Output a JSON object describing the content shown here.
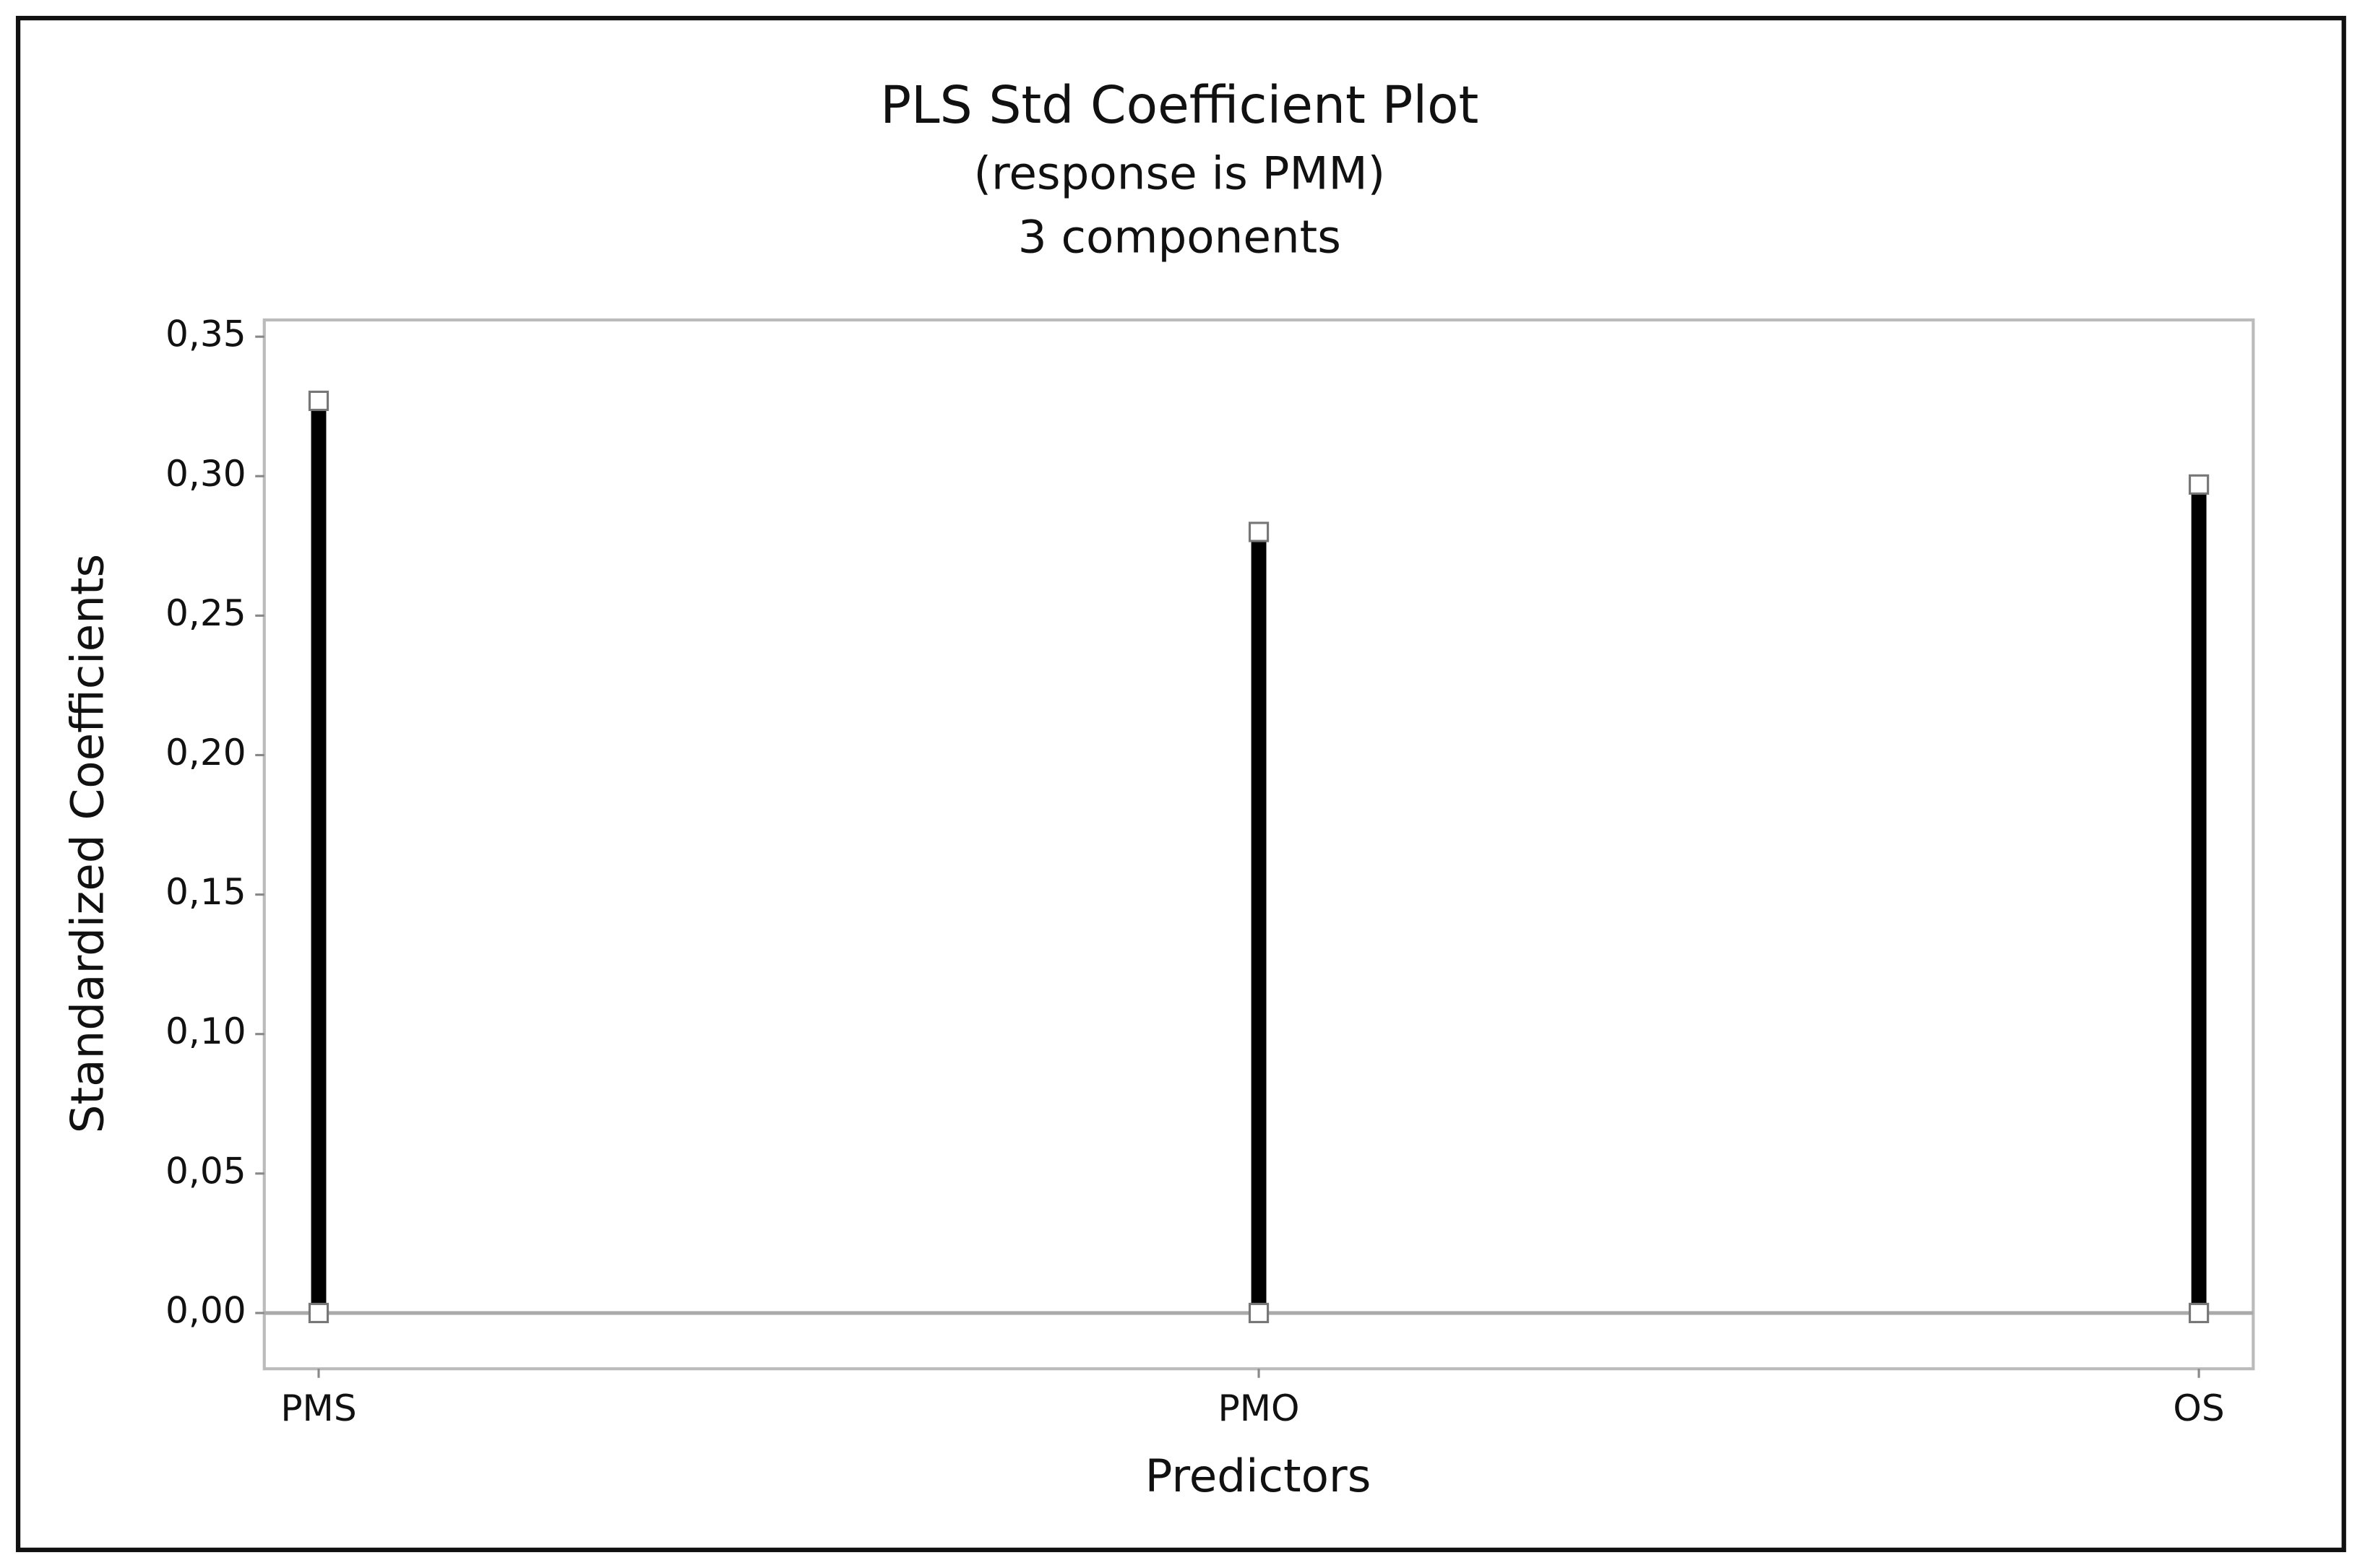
{
  "chart_data": {
    "type": "bar",
    "title": "PLS Std Coefficient Plot",
    "subtitle": "(response is PMM)",
    "subtitle2": "3 components",
    "x_label": "Predictors",
    "y_label": "Standardized Coefficients",
    "categories": [
      "PMS",
      "PMO",
      "OS"
    ],
    "values": [
      0.327,
      0.28,
      0.297
    ],
    "color": "#000000",
    "ylim": [
      -0.02,
      0.356
    ],
    "yticks": [
      {
        "value": 0,
        "label": "0,00"
      },
      {
        "value": 0.05,
        "label": "0,05"
      },
      {
        "value": 0.1,
        "label": "0,10"
      },
      {
        "value": 0.15,
        "label": "0,15"
      },
      {
        "value": 0.2,
        "label": "0,20"
      },
      {
        "value": 0.25,
        "label": "0,25"
      },
      {
        "value": 0.3,
        "label": "0,30"
      },
      {
        "value": 0.35,
        "label": "0,35"
      }
    ]
  }
}
